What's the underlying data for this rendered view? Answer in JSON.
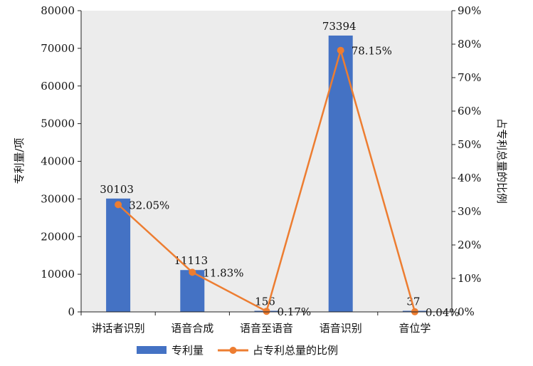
{
  "chart_data": {
    "type": "bar",
    "categories": [
      "讲话者识别",
      "语音合成",
      "语音至语音",
      "语音识别",
      "音位学"
    ],
    "y_left": {
      "label": "专利量/项",
      "ticks": [
        "0",
        "10000",
        "20000",
        "30000",
        "40000",
        "50000",
        "60000",
        "70000",
        "80000"
      ],
      "ylim": [
        0,
        80000
      ]
    },
    "y_right": {
      "label": "占专利总量的比例",
      "ticks": [
        "0%",
        "10%",
        "20%",
        "30%",
        "40%",
        "50%",
        "60%",
        "70%",
        "80%",
        "90%"
      ],
      "ylim": [
        0,
        90
      ]
    },
    "series": [
      {
        "name": "专利量",
        "kind": "bar",
        "axis": "left",
        "color": "#4472C4",
        "values": [
          30103,
          11113,
          156,
          73394,
          37
        ],
        "labels": [
          "30103",
          "11113",
          "156",
          "73394",
          "37"
        ]
      },
      {
        "name": "占专利总量的比例",
        "kind": "line",
        "axis": "right",
        "color": "#ED7D31",
        "values": [
          32.05,
          11.83,
          0.17,
          78.15,
          0.04
        ],
        "labels": [
          "32.05%",
          "11.83%",
          "0.17%",
          "78.15%",
          "0.04%"
        ]
      }
    ],
    "legend_position": "bottom",
    "grid": false
  }
}
